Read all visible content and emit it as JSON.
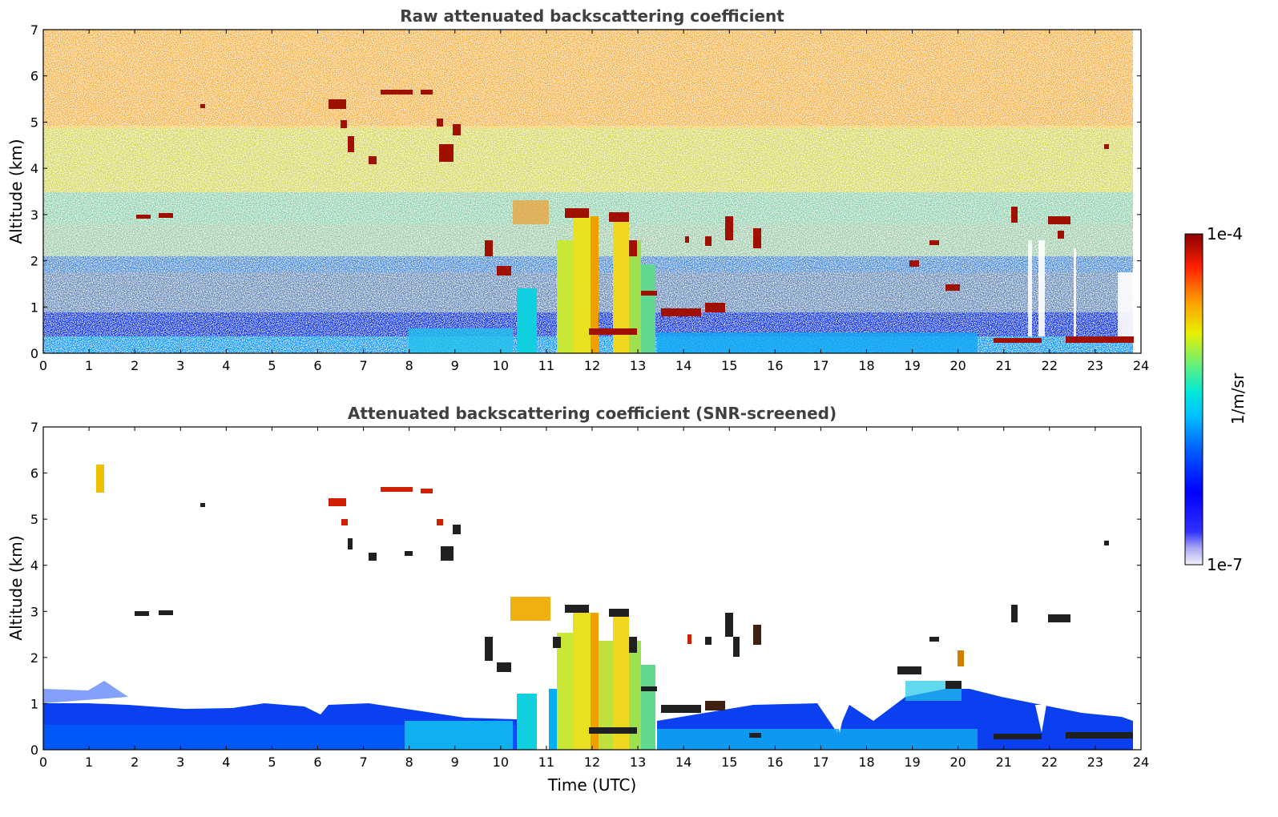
{
  "chart_data": [
    {
      "type": "heatmap",
      "title": "Raw attenuated backscattering coefficient",
      "xlabel": "",
      "ylabel": "Altitude (km)",
      "xlim": [
        0,
        24
      ],
      "ylim": [
        0,
        7
      ],
      "x_ticks": [
        "0",
        "1",
        "2",
        "3",
        "4",
        "5",
        "6",
        "7",
        "8",
        "9",
        "10",
        "11",
        "12",
        "13",
        "14",
        "15",
        "16",
        "17",
        "18",
        "19",
        "20",
        "21",
        "22",
        "23",
        "24"
      ],
      "y_ticks": [
        "0",
        "1",
        "2",
        "3",
        "4",
        "5",
        "6",
        "7"
      ],
      "data_extent_hours": [
        0,
        23.8
      ],
      "features": {
        "boundary_layer_top_km": 0.5,
        "noise_increasing_with_altitude": true,
        "cirrus_layers": [
          {
            "t_start": 6.2,
            "t_end": 9.5,
            "alt_km": [
              4.0,
              5.6
            ]
          },
          {
            "t_start": 2.0,
            "t_end": 2.8,
            "alt_km": [
              2.9,
              3.0
            ]
          }
        ],
        "convective_columns": [
          {
            "t_start": 10.3,
            "t_end": 13.5,
            "alt_km": [
              0.0,
              3.2
            ]
          }
        ],
        "low_clouds": [
          {
            "t_start": 13.5,
            "t_end": 15.0,
            "alt_km": [
              0.8,
              0.9
            ]
          },
          {
            "t_start": 21.0,
            "t_end": 23.8,
            "alt_km": [
              0.2,
              0.3
            ]
          }
        ]
      }
    },
    {
      "type": "heatmap",
      "title": "Attenuated backscattering coefficient (SNR-screened)",
      "xlabel": "Time (UTC)",
      "ylabel": "Altitude (km)",
      "xlim": [
        0,
        24
      ],
      "ylim": [
        0,
        7
      ],
      "x_ticks": [
        "0",
        "1",
        "2",
        "3",
        "4",
        "5",
        "6",
        "7",
        "8",
        "9",
        "10",
        "11",
        "12",
        "13",
        "14",
        "15",
        "16",
        "17",
        "18",
        "19",
        "20",
        "21",
        "22",
        "23",
        "24"
      ],
      "y_ticks": [
        "0",
        "1",
        "2",
        "3",
        "4",
        "5",
        "6",
        "7"
      ],
      "data_extent_hours": [
        0,
        23.8
      ],
      "features": {
        "boundary_layer_top_km": [
          1.0,
          0.6,
          0.8,
          1.2
        ],
        "screened_noise_removed": true
      }
    }
  ],
  "colorbar": {
    "label": "1/m/sr",
    "min_label": "1e-7",
    "max_label": "1e-4",
    "scale": "log",
    "colors": [
      "#e8e8f8",
      "#9090f0",
      "#0000ff",
      "#0050ff",
      "#00a0ff",
      "#00e0e0",
      "#60f080",
      "#f0f000",
      "#ff9000",
      "#ff2000",
      "#a00000"
    ]
  }
}
